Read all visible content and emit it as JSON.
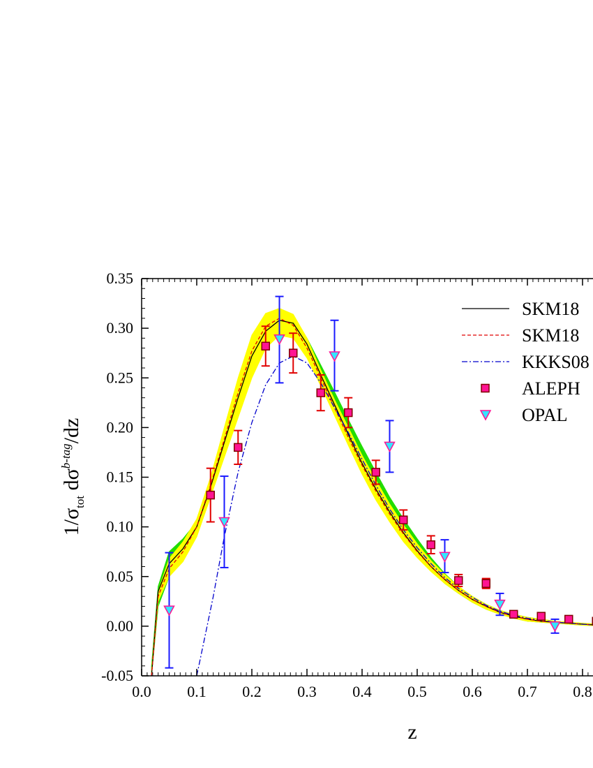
{
  "chart_data": {
    "type": "line",
    "xlabel": "z",
    "ylabel": {
      "main1": "1/σ",
      "sub1": "tot",
      "main2": " dσ",
      "sup2": "b-tag",
      "main3": "/dz"
    },
    "xlim": [
      0.0,
      0.83
    ],
    "ylim": [
      -0.05,
      0.35
    ],
    "x_ticks": [
      "0.0",
      "0.1",
      "0.2",
      "0.3",
      "0.4",
      "0.5",
      "0.6",
      "0.7",
      "0.8"
    ],
    "x_tick_values": [
      0.0,
      0.1,
      0.2,
      0.3,
      0.4,
      0.5,
      0.6,
      0.7,
      0.8
    ],
    "y_ticks": [
      "-0.05",
      "0.00",
      "0.05",
      "0.10",
      "0.15",
      "0.20",
      "0.25",
      "0.30",
      "0.35"
    ],
    "y_tick_values": [
      -0.05,
      0.0,
      0.05,
      0.1,
      0.15,
      0.2,
      0.25,
      0.3,
      0.35
    ],
    "grid": false,
    "legend_position": "top-right",
    "legend": [
      {
        "label": "SKM18",
        "style": "solid",
        "color": "#000000"
      },
      {
        "label": "SKM18",
        "style": "dashed",
        "color": "#e00000"
      },
      {
        "label": "KKKS08",
        "style": "dashdot",
        "color": "#0000cc"
      },
      {
        "label": "ALEPH",
        "marker": "square",
        "color": "#ff1493"
      },
      {
        "label": "OPAL",
        "marker": "triangle-down",
        "color": "#33e6ff"
      }
    ],
    "bands": [
      {
        "color": "#22dd00",
        "x": [
          0.018,
          0.03,
          0.05,
          0.075,
          0.1,
          0.125,
          0.15,
          0.175,
          0.2,
          0.225,
          0.25,
          0.275,
          0.3,
          0.325,
          0.35,
          0.375,
          0.4,
          0.425,
          0.45,
          0.475,
          0.5,
          0.525,
          0.55,
          0.575,
          0.6,
          0.625,
          0.65,
          0.675,
          0.7,
          0.725,
          0.75,
          0.775,
          0.8,
          0.83
        ],
        "upper": [
          -0.04,
          0.04,
          0.075,
          0.088,
          0.105,
          0.145,
          0.195,
          0.245,
          0.285,
          0.31,
          0.317,
          0.312,
          0.29,
          0.263,
          0.236,
          0.208,
          0.181,
          0.155,
          0.13,
          0.108,
          0.088,
          0.069,
          0.053,
          0.04,
          0.03,
          0.022,
          0.016,
          0.012,
          0.009,
          0.007,
          0.005,
          0.004,
          0.003,
          0.002
        ],
        "lower": [
          -0.05,
          0.02,
          0.05,
          0.068,
          0.095,
          0.135,
          0.175,
          0.215,
          0.255,
          0.283,
          0.297,
          0.296,
          0.278,
          0.248,
          0.216,
          0.185,
          0.156,
          0.13,
          0.107,
          0.087,
          0.07,
          0.056,
          0.043,
          0.033,
          0.024,
          0.017,
          0.012,
          0.008,
          0.005,
          0.004,
          0.003,
          0.002,
          0.001,
          0.0005
        ]
      },
      {
        "color": "#ffff00",
        "x": [
          0.018,
          0.03,
          0.05,
          0.075,
          0.1,
          0.125,
          0.15,
          0.175,
          0.2,
          0.225,
          0.25,
          0.275,
          0.3,
          0.325,
          0.35,
          0.375,
          0.4,
          0.425,
          0.45,
          0.475,
          0.5,
          0.525,
          0.55,
          0.575,
          0.6,
          0.625,
          0.65,
          0.675,
          0.7,
          0.725,
          0.75,
          0.775,
          0.8,
          0.83
        ],
        "upper": [
          -0.045,
          0.035,
          0.068,
          0.085,
          0.108,
          0.15,
          0.2,
          0.25,
          0.293,
          0.315,
          0.32,
          0.314,
          0.29,
          0.258,
          0.228,
          0.2,
          0.172,
          0.147,
          0.123,
          0.102,
          0.083,
          0.066,
          0.052,
          0.04,
          0.03,
          0.022,
          0.016,
          0.012,
          0.009,
          0.007,
          0.005,
          0.004,
          0.003,
          0.002
        ],
        "lower": [
          -0.05,
          0.025,
          0.05,
          0.065,
          0.09,
          0.13,
          0.17,
          0.21,
          0.25,
          0.28,
          0.293,
          0.29,
          0.27,
          0.242,
          0.212,
          0.182,
          0.153,
          0.127,
          0.105,
          0.085,
          0.069,
          0.055,
          0.043,
          0.033,
          0.024,
          0.017,
          0.012,
          0.008,
          0.005,
          0.004,
          0.003,
          0.002,
          0.001,
          0.0005
        ]
      }
    ],
    "series": [
      {
        "style": "solid",
        "color": "#000000",
        "x": [
          0.018,
          0.03,
          0.05,
          0.075,
          0.1,
          0.125,
          0.15,
          0.175,
          0.2,
          0.225,
          0.25,
          0.275,
          0.3,
          0.325,
          0.35,
          0.375,
          0.4,
          0.425,
          0.45,
          0.475,
          0.5,
          0.525,
          0.55,
          0.575,
          0.6,
          0.625,
          0.65,
          0.675,
          0.7,
          0.725,
          0.75,
          0.775,
          0.8,
          0.83
        ],
        "y": [
          -0.05,
          0.035,
          0.063,
          0.078,
          0.1,
          0.14,
          0.185,
          0.23,
          0.272,
          0.297,
          0.308,
          0.305,
          0.284,
          0.253,
          0.223,
          0.193,
          0.164,
          0.138,
          0.115,
          0.094,
          0.076,
          0.06,
          0.047,
          0.036,
          0.027,
          0.02,
          0.014,
          0.01,
          0.007,
          0.005,
          0.004,
          0.003,
          0.002,
          0.001
        ]
      },
      {
        "style": "dashed",
        "color": "#e00000",
        "x": [
          0.018,
          0.03,
          0.05,
          0.075,
          0.1,
          0.125,
          0.15,
          0.175,
          0.2,
          0.225,
          0.25,
          0.275,
          0.3,
          0.325,
          0.35,
          0.375,
          0.4,
          0.425,
          0.45,
          0.475,
          0.5,
          0.525,
          0.55,
          0.575,
          0.6,
          0.625,
          0.65,
          0.675,
          0.7,
          0.725,
          0.75,
          0.775,
          0.8,
          0.83
        ],
        "y": [
          -0.05,
          0.03,
          0.058,
          0.075,
          0.1,
          0.142,
          0.188,
          0.235,
          0.277,
          0.302,
          0.31,
          0.303,
          0.28,
          0.25,
          0.22,
          0.19,
          0.162,
          0.136,
          0.113,
          0.093,
          0.075,
          0.06,
          0.047,
          0.036,
          0.027,
          0.02,
          0.014,
          0.01,
          0.007,
          0.005,
          0.004,
          0.003,
          0.002,
          0.001
        ]
      },
      {
        "style": "dashdot",
        "color": "#0000cc",
        "x": [
          0.1,
          0.115,
          0.13,
          0.15,
          0.175,
          0.2,
          0.225,
          0.25,
          0.275,
          0.3,
          0.325,
          0.35,
          0.375,
          0.4,
          0.425,
          0.45,
          0.475,
          0.5,
          0.525,
          0.55,
          0.575,
          0.6,
          0.625,
          0.65,
          0.675,
          0.7,
          0.725,
          0.75,
          0.775,
          0.8,
          0.83
        ],
        "y": [
          -0.05,
          -0.01,
          0.03,
          0.09,
          0.155,
          0.205,
          0.243,
          0.265,
          0.272,
          0.265,
          0.245,
          0.22,
          0.195,
          0.168,
          0.142,
          0.118,
          0.097,
          0.079,
          0.063,
          0.049,
          0.038,
          0.029,
          0.021,
          0.015,
          0.011,
          0.008,
          0.006,
          0.004,
          0.003,
          0.002,
          0.001
        ]
      }
    ],
    "aleph": [
      {
        "x": 0.125,
        "y": 0.132,
        "lo": 0.105,
        "hi": 0.159
      },
      {
        "x": 0.175,
        "y": 0.18,
        "lo": 0.163,
        "hi": 0.197
      },
      {
        "x": 0.225,
        "y": 0.282,
        "lo": 0.262,
        "hi": 0.302
      },
      {
        "x": 0.275,
        "y": 0.275,
        "lo": 0.255,
        "hi": 0.295
      },
      {
        "x": 0.325,
        "y": 0.235,
        "lo": 0.217,
        "hi": 0.253
      },
      {
        "x": 0.375,
        "y": 0.215,
        "lo": 0.2,
        "hi": 0.23
      },
      {
        "x": 0.425,
        "y": 0.155,
        "lo": 0.143,
        "hi": 0.167
      },
      {
        "x": 0.475,
        "y": 0.107,
        "lo": 0.097,
        "hi": 0.117
      },
      {
        "x": 0.525,
        "y": 0.082,
        "lo": 0.073,
        "hi": 0.091
      },
      {
        "x": 0.575,
        "y": 0.046,
        "lo": 0.04,
        "hi": 0.052
      },
      {
        "x": 0.625,
        "y": 0.043,
        "lo": 0.038,
        "hi": 0.048
      },
      {
        "x": 0.675,
        "y": 0.012,
        "lo": 0.01,
        "hi": 0.014
      },
      {
        "x": 0.725,
        "y": 0.01,
        "lo": 0.008,
        "hi": 0.012
      },
      {
        "x": 0.775,
        "y": 0.007,
        "lo": 0.005,
        "hi": 0.009
      },
      {
        "x": 0.825,
        "y": 0.005,
        "lo": 0.004,
        "hi": 0.006
      }
    ],
    "opal": [
      {
        "x": 0.05,
        "y": 0.016,
        "lo": -0.042,
        "hi": 0.074
      },
      {
        "x": 0.15,
        "y": 0.105,
        "lo": 0.059,
        "hi": 0.151
      },
      {
        "x": 0.25,
        "y": 0.289,
        "lo": 0.245,
        "hi": 0.332
      },
      {
        "x": 0.35,
        "y": 0.272,
        "lo": 0.237,
        "hi": 0.308
      },
      {
        "x": 0.45,
        "y": 0.181,
        "lo": 0.155,
        "hi": 0.207
      },
      {
        "x": 0.55,
        "y": 0.07,
        "lo": 0.054,
        "hi": 0.087
      },
      {
        "x": 0.65,
        "y": 0.022,
        "lo": 0.011,
        "hi": 0.033
      },
      {
        "x": 0.75,
        "y": 0.0,
        "lo": -0.007,
        "hi": 0.007
      }
    ]
  }
}
